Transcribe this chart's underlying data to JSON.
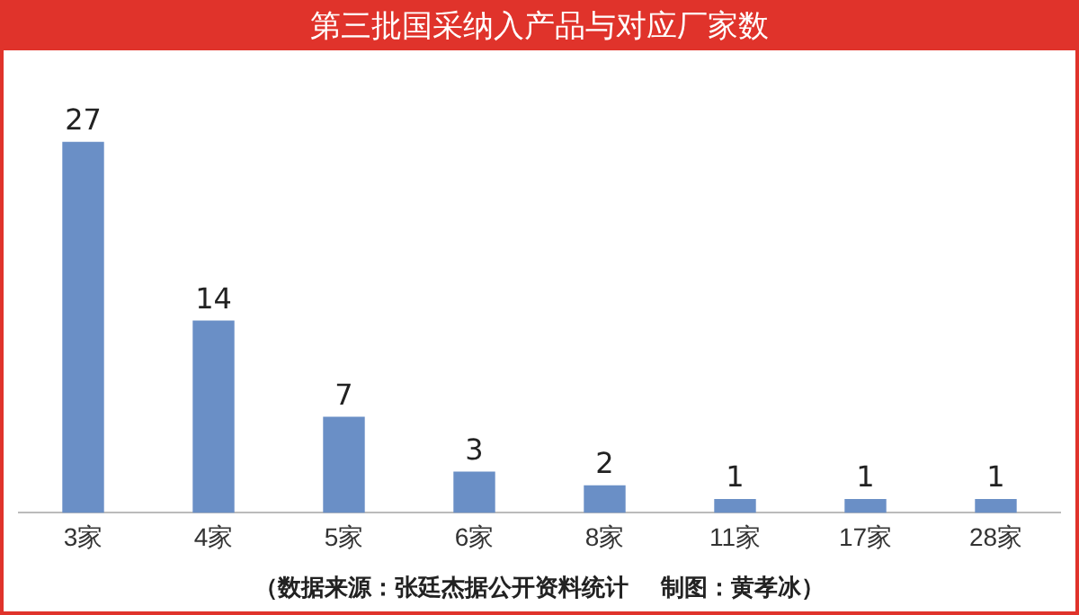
{
  "chart_data": {
    "type": "bar",
    "title": "第三批国采纳入产品与对应厂家数",
    "categories": [
      "3家",
      "4家",
      "5家",
      "6家",
      "8家",
      "11家",
      "17家",
      "28家"
    ],
    "values": [
      27,
      14,
      7,
      3,
      2,
      1,
      1,
      1
    ],
    "color": "#6a8fc6",
    "data_labels": true,
    "grid": false,
    "legend": false,
    "annotations": [
      "（数据来源：张廷杰据公开资料统计　 制图：黄孝冰）"
    ]
  }
}
